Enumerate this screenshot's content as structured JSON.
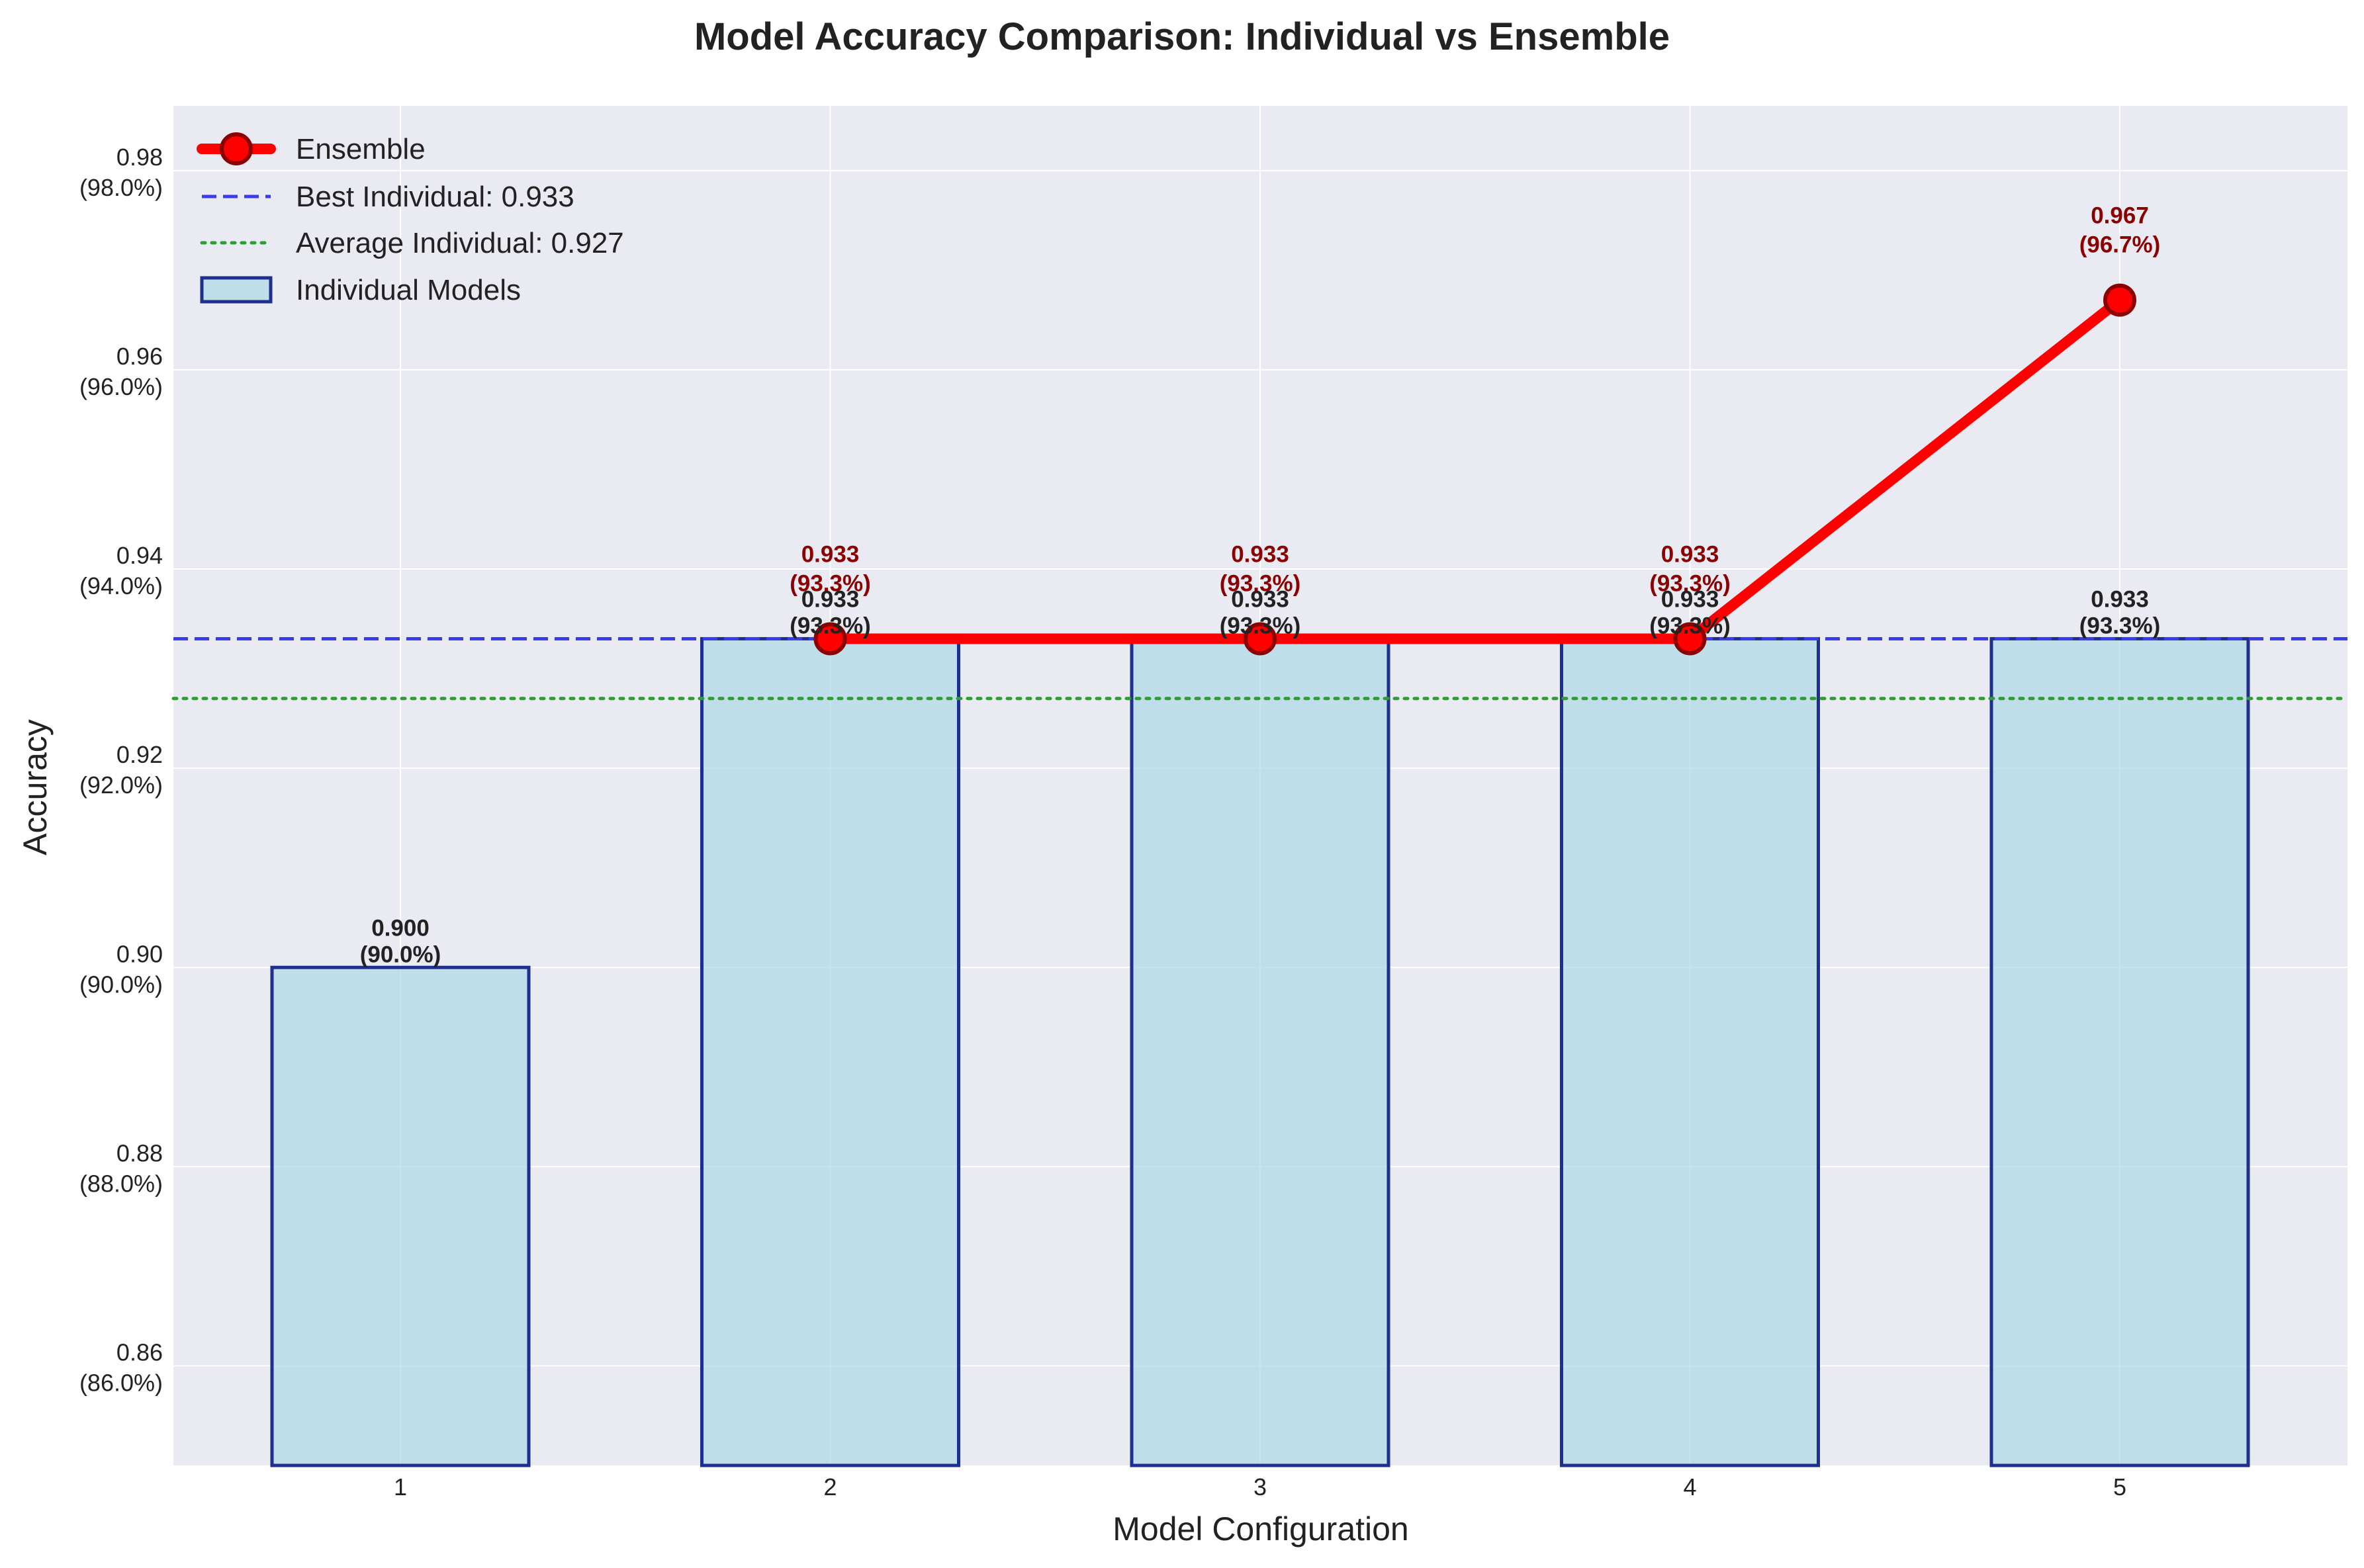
{
  "chart_data": {
    "type": "bar",
    "title": "Model Accuracy Comparison: Individual vs Ensemble",
    "xlabel": "Model Configuration",
    "ylabel": "Accuracy",
    "categories": [
      "1",
      "2",
      "3",
      "4",
      "5"
    ],
    "ylim": [
      0.85,
      0.9865
    ],
    "y_ticks": [
      {
        "value": 0.86,
        "label": "0.86",
        "pct": "(86.0%)"
      },
      {
        "value": 0.88,
        "label": "0.88",
        "pct": "(88.0%)"
      },
      {
        "value": 0.9,
        "label": "0.90",
        "pct": "(90.0%)"
      },
      {
        "value": 0.92,
        "label": "0.92",
        "pct": "(92.0%)"
      },
      {
        "value": 0.94,
        "label": "0.94",
        "pct": "(94.0%)"
      },
      {
        "value": 0.96,
        "label": "0.96",
        "pct": "(96.0%)"
      },
      {
        "value": 0.98,
        "label": "0.98",
        "pct": "(98.0%)"
      }
    ],
    "grid": true,
    "legend_position": "top-left",
    "series": [
      {
        "name": "Individual Models",
        "kind": "bar",
        "color": "#add8e6",
        "edge_color": "#1f2f8f",
        "values": [
          0.9,
          0.933,
          0.933,
          0.933,
          0.933
        ],
        "labels": [
          "0.900",
          "0.933",
          "0.933",
          "0.933",
          "0.933"
        ],
        "pct_labels": [
          "(90.0%)",
          "(93.3%)",
          "(93.3%)",
          "(93.3%)",
          "(93.3%)"
        ]
      },
      {
        "name": "Ensemble",
        "kind": "line",
        "color": "#ff0000",
        "marker_edge": "#8b0000",
        "x": [
          "2",
          "3",
          "4",
          "5"
        ],
        "values": [
          0.933,
          0.933,
          0.933,
          0.967
        ],
        "labels": [
          "0.933",
          "0.933",
          "0.933",
          "0.967"
        ],
        "pct_labels": [
          "(93.3%)",
          "(93.3%)",
          "(93.3%)",
          "(96.7%)"
        ]
      }
    ],
    "reference_lines": [
      {
        "name": "Best Individual: 0.933",
        "value": 0.933,
        "color": "#3a3af0",
        "style": "dashed"
      },
      {
        "name": "Average Individual: 0.927",
        "value": 0.927,
        "color": "#2ca02c",
        "style": "dotted"
      }
    ],
    "legend": [
      "Ensemble",
      "Best Individual: 0.933",
      "Average Individual: 0.927",
      "Individual Models"
    ]
  }
}
